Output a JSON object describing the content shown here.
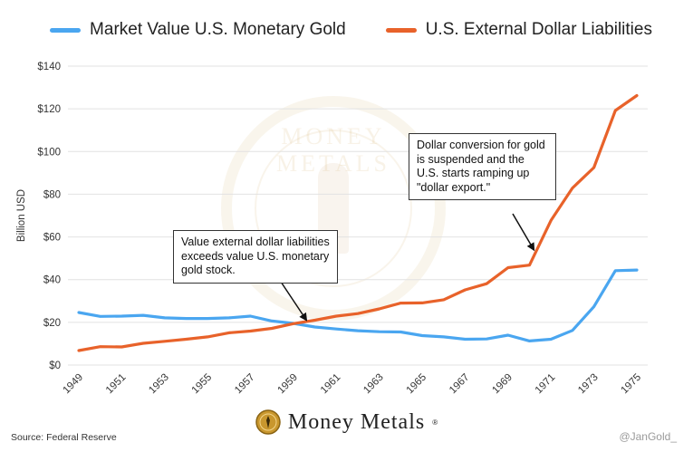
{
  "chart_data": {
    "type": "line",
    "x": [
      1949,
      1950,
      1951,
      1952,
      1953,
      1954,
      1955,
      1956,
      1957,
      1958,
      1959,
      1960,
      1961,
      1962,
      1963,
      1964,
      1965,
      1966,
      1967,
      1968,
      1969,
      1970,
      1971,
      1972,
      1973,
      1974,
      1975
    ],
    "x_tick_labels": [
      "1949",
      "1951",
      "1953",
      "1955",
      "1957",
      "1959",
      "1961",
      "1963",
      "1965",
      "1967",
      "1969",
      "1971",
      "1973",
      "1975"
    ],
    "series": [
      {
        "name": "Market Value U.S. Monetary Gold",
        "color": "#4aa6f0",
        "values": [
          24.6,
          22.8,
          22.9,
          23.3,
          22.1,
          21.8,
          21.8,
          22.1,
          22.9,
          20.6,
          19.5,
          17.8,
          16.9,
          16.1,
          15.6,
          15.5,
          13.8,
          13.2,
          12.1,
          12.2,
          14.0,
          11.3,
          12.1,
          16.2,
          27.3,
          44.2,
          44.5
        ]
      },
      {
        "name": "U.S. External Dollar Liabilities",
        "color": "#e8622a",
        "values": [
          6.8,
          8.6,
          8.5,
          10.2,
          11.1,
          12.1,
          13.2,
          15.1,
          15.9,
          17.2,
          19.4,
          21.0,
          22.9,
          24.1,
          26.3,
          29.0,
          29.1,
          30.6,
          35.2,
          38.1,
          45.6,
          46.8,
          67.7,
          82.9,
          92.5,
          119.2,
          126.2
        ]
      }
    ],
    "ylabel": "Billion USD",
    "ylim": [
      0,
      140
    ],
    "y_ticks": [
      0,
      20,
      40,
      60,
      80,
      100,
      120,
      140
    ],
    "y_tick_labels": [
      "$0",
      "$20",
      "$40",
      "$60",
      "$80",
      "$100",
      "$120",
      "$140"
    ],
    "grid": true,
    "legend_position": "top",
    "annotations": [
      {
        "text": "Value external dollar liabilities exceeds value U.S. monetary gold stock.",
        "target_x": 1959.6,
        "target_y": 19.4
      },
      {
        "text": "Dollar conversion for gold is suspended and the U.S. starts ramping up \"dollar export.\"",
        "target_x": 1970.2,
        "target_y": 54
      }
    ]
  },
  "legend": {
    "gold_label": "Market Value U.S. Monetary Gold",
    "liabilities_label": "U.S. External Dollar Liabilities"
  },
  "annotations": {
    "crossover": "Value external dollar liabilities exceeds value U.S. monetary gold stock.",
    "suspension": "Dollar conversion for gold is suspended and the U.S. starts ramping up \"dollar export.\""
  },
  "footer": {
    "source": "Source: Federal Reserve",
    "logo_text": "Money Metals",
    "credit": "@JanGold_"
  },
  "watermark_text": "MONEY METALS",
  "colors": {
    "gold_line": "#4aa6f0",
    "liabilities_line": "#e8622a",
    "grid": "#e2e2e2"
  }
}
